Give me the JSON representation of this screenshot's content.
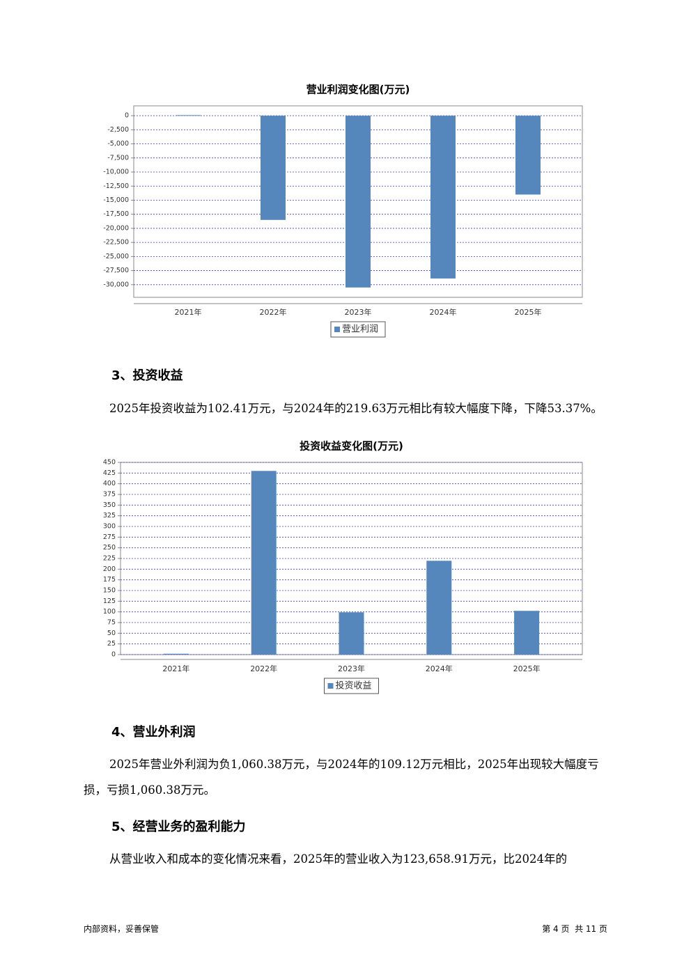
{
  "chart_data": [
    {
      "type": "bar",
      "title": "营业利润变化图(万元)",
      "categories": [
        "2021年",
        "2022年",
        "2023年",
        "2024年",
        "2025年"
      ],
      "series": [
        {
          "name": "营业利润",
          "color": "#5587bd",
          "values": [
            100,
            -18500,
            -30500,
            -28900,
            -14000
          ]
        }
      ],
      "ylim": [
        -32250,
        1750
      ],
      "yticks": [
        0,
        {
          "value": -2500,
          "label": "-2,500"
        },
        {
          "value": -5000,
          "label": "-5,000"
        },
        {
          "value": -7500,
          "label": "-7,500"
        },
        {
          "value": -10000,
          "label": "-10,000"
        },
        {
          "value": -12500,
          "label": "-12,500"
        },
        {
          "value": -15000,
          "label": "-15,000"
        },
        {
          "value": -17500,
          "label": "-17,500"
        },
        {
          "value": -20000,
          "label": "-20,000"
        },
        {
          "value": -22500,
          "label": "-22,500"
        },
        {
          "value": -25000,
          "label": "-25,000"
        },
        {
          "value": -27500,
          "label": "-27,500"
        },
        {
          "value": -30000,
          "label": "-30,000"
        }
      ],
      "grid": true
    },
    {
      "type": "bar",
      "title": "投资收益变化图(万元)",
      "categories": [
        "2021年",
        "2022年",
        "2023年",
        "2024年",
        "2025年"
      ],
      "series": [
        {
          "name": "投资收益",
          "color": "#5587bd",
          "values": [
            2,
            430,
            99,
            219.63,
            102.41
          ]
        }
      ],
      "ylim": [
        0,
        450
      ],
      "yticks": [
        0,
        25,
        50,
        75,
        100,
        125,
        150,
        175,
        200,
        225,
        250,
        275,
        300,
        325,
        350,
        375,
        400,
        425,
        450
      ],
      "grid": true
    }
  ],
  "sections": [
    {
      "heading": "3、投资收益",
      "paragraphs": [
        "2025年投资收益为102.41万元，与2024年的219.63万元相比有较大幅度下降，下降53.37%。"
      ]
    },
    {
      "heading": "4、营业外利润",
      "paragraphs": [
        "2025年营业外利润为负1,060.38万元，与2024年的109.12万元相比，2025年出现较大幅度亏损，亏损1,060.38万元。"
      ]
    },
    {
      "heading": "5、经营业务的盈利能力",
      "paragraphs": [
        "从营业收入和成本的变化情况来看，2025年的营业收入为123,658.91万元，比2024年的"
      ]
    }
  ],
  "footer": {
    "left": "内部资料，妥善保管",
    "right": "第 4 页  共 11 页"
  }
}
